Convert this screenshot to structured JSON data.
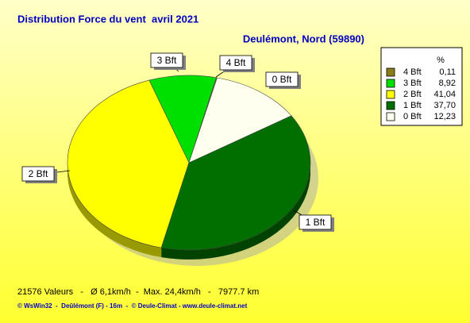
{
  "chart_data": {
    "type": "pie",
    "title": "Distribution Force du vent  avril 2021",
    "subtitle": "Deulémont, Nord (59890)",
    "legend_header": "%",
    "categories": [
      "4 Bft",
      "3 Bft",
      "2 Bft",
      "1 Bft",
      "0 Bft"
    ],
    "values": [
      0.11,
      8.92,
      41.04,
      37.7,
      12.23
    ],
    "value_labels": [
      "0,11",
      "8,92",
      "41,04",
      "37,70",
      "12,23"
    ],
    "colors": [
      "#8b7d1a",
      "#00e000",
      "#ffff00",
      "#006f00",
      "#fffff0"
    ],
    "legend": "upper right",
    "footer": "21576 Valeurs   -   Ø 6,1km/h  -  Max. 24,4km/h   -   7977.7 km",
    "credit": "© WsWin32  -  Deûlémont (F) - 16m  -  © Deule-Climat - www.deule-climat.net"
  }
}
